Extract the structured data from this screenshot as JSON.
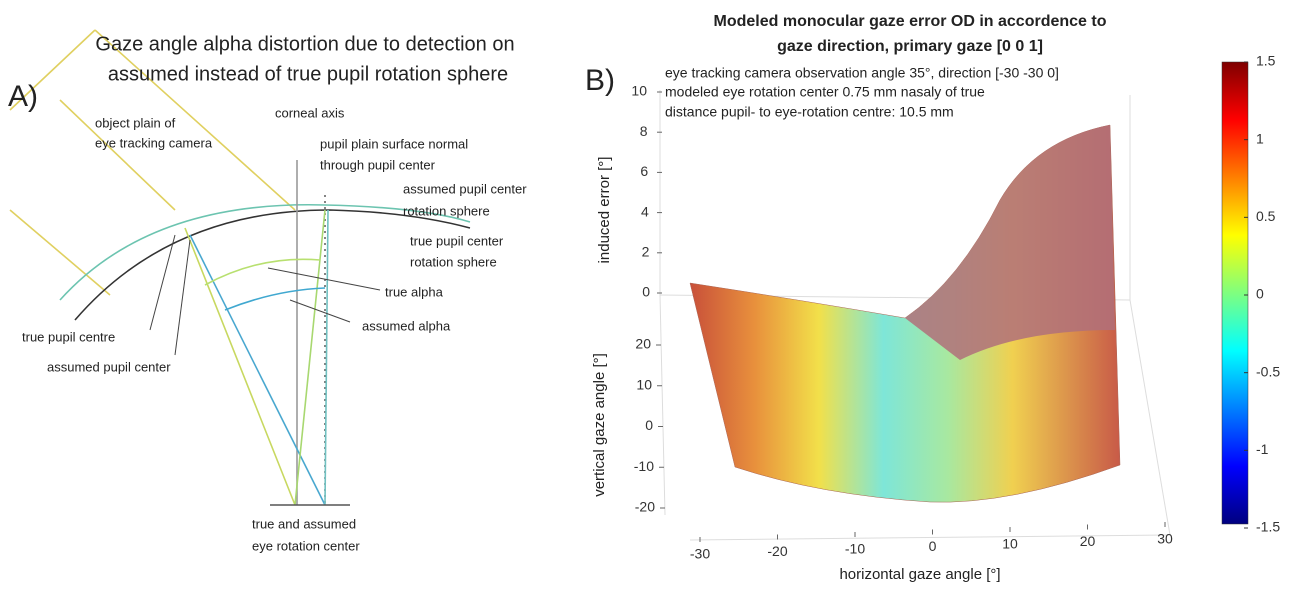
{
  "panel_a": {
    "label": "A)",
    "title": [
      "Gaze angle alpha distortion due to detection on",
      "assumed instead of true pupil rotation sphere"
    ],
    "labels": {
      "object_plane": [
        "object plain of",
        "eye tracking camera"
      ],
      "corneal_axis": "corneal axis",
      "surface_normal": [
        "pupil plain surface normal",
        "through pupil center"
      ],
      "assumed_sphere": [
        "assumed pupil center",
        "rotation sphere"
      ],
      "true_sphere": [
        "true pupil center",
        "rotation sphere"
      ],
      "true_alpha": "true alpha",
      "assumed_alpha": "assumed alpha",
      "true_pupil": "true pupil centre",
      "assumed_pupil": "assumed pupil center",
      "rotation_center": [
        "true and assumed",
        "eye rotation center"
      ]
    }
  },
  "panel_b": {
    "label": "B)",
    "title": [
      "Modeled monocular gaze error OD in accordence to",
      "gaze direction, primary gaze [0 0 1]"
    ],
    "annotation": [
      "eye tracking camera observation angle 35°, direction [-30 -30 0]",
      "modeled eye rotation center 0.75 mm nasaly of true",
      "distance pupil- to eye-rotation centre: 10.5 mm"
    ],
    "xlabel": "horizontal gaze angle [°]",
    "ylabel": "vertical gaze angle [°]",
    "zlabel": "induced error [°]",
    "xlim": [
      -30,
      30
    ],
    "xticks": [
      -30,
      -20,
      -10,
      0,
      10,
      20,
      30
    ],
    "ylim": [
      -20,
      20
    ],
    "yticks": [
      -20,
      -10,
      0,
      10,
      20
    ],
    "zlim": [
      0,
      10
    ],
    "zticks": [
      0,
      2,
      4,
      6,
      8,
      10
    ],
    "colorbar": {
      "lim": [
        -1.5,
        1.5
      ],
      "ticks": [
        -1.5,
        -1,
        -0.5,
        0,
        0.5,
        1,
        1.5
      ]
    }
  }
}
